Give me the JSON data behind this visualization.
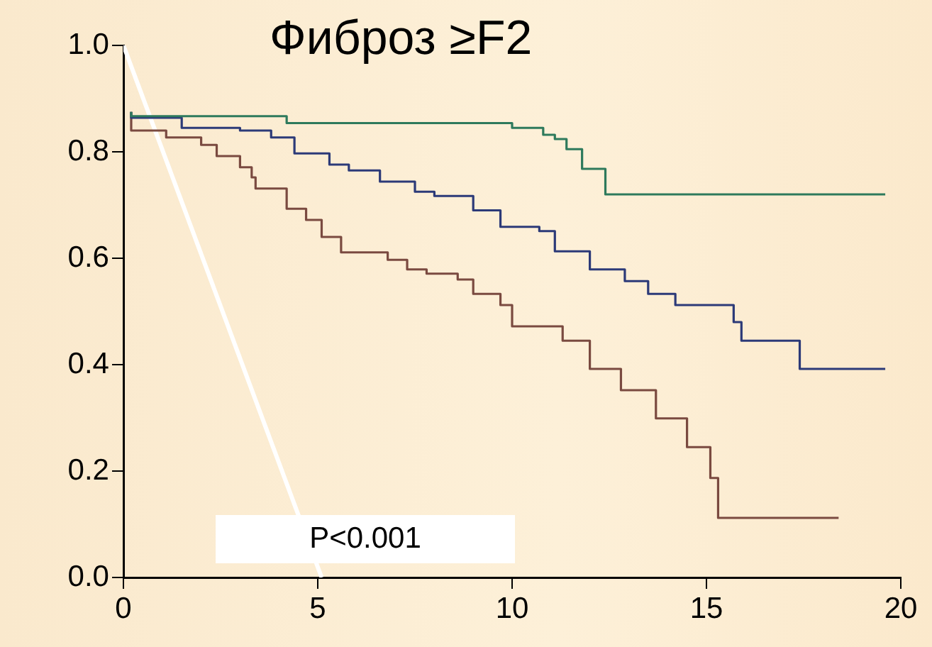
{
  "chart_data": {
    "type": "step",
    "title": "Фиброз ≥F2",
    "annotations": [
      "P<0.001"
    ],
    "xlim": [
      0,
      20
    ],
    "xticks": [
      0,
      5,
      10,
      15,
      20
    ],
    "ylim": [
      0,
      1
    ],
    "yticks": [
      {
        "value": 0,
        "label": "0.0"
      },
      0.2,
      0.4,
      0.6,
      0.8,
      {
        "value": 1,
        "label": "1.0"
      }
    ],
    "grid": false,
    "legend": false,
    "marker": "none",
    "line_style": "solid",
    "series": [
      {
        "color": "#2e7a5c",
        "x": [
          0.2,
          4.2,
          10.0,
          10.8,
          11.1,
          11.4,
          11.8,
          12.4,
          13.8,
          19.6
        ],
        "values": [
          0.875,
          0.867,
          0.854,
          0.845,
          0.832,
          0.824,
          0.805,
          0.768,
          0.72,
          0.72
        ]
      },
      {
        "color": "#2c3a78",
        "x": [
          0.2,
          1.5,
          3.0,
          3.8,
          4.4,
          5.3,
          5.8,
          6.6,
          7.5,
          8.0,
          9.0,
          9.7,
          10.7,
          11.1,
          12.0,
          12.9,
          13.5,
          14.2,
          15.7,
          15.9,
          17.4,
          17.6,
          19.6
        ],
        "values": [
          0.875,
          0.864,
          0.845,
          0.84,
          0.827,
          0.797,
          0.776,
          0.765,
          0.744,
          0.725,
          0.717,
          0.69,
          0.659,
          0.651,
          0.613,
          0.579,
          0.557,
          0.533,
          0.512,
          0.48,
          0.445,
          0.392,
          0.392
        ]
      },
      {
        "color": "#7a4a40",
        "x": [
          0.2,
          1.1,
          2.0,
          2.4,
          3.0,
          3.3,
          3.4,
          4.2,
          4.7,
          5.1,
          5.6,
          6.8,
          7.3,
          7.8,
          8.6,
          9.0,
          9.7,
          10.0,
          11.3,
          12.0,
          12.8,
          13.7,
          14.5,
          15.1,
          15.3,
          16.2,
          18.4
        ],
        "values": [
          0.875,
          0.84,
          0.827,
          0.813,
          0.792,
          0.771,
          0.752,
          0.731,
          0.693,
          0.672,
          0.64,
          0.611,
          0.597,
          0.579,
          0.571,
          0.56,
          0.533,
          0.512,
          0.472,
          0.445,
          0.392,
          0.352,
          0.299,
          0.245,
          0.187,
          0.112,
          0.112
        ]
      },
      {
        "type": "line",
        "color": "#ffffff",
        "x": [
          0,
          5.1
        ],
        "values": [
          1,
          0
        ]
      }
    ]
  }
}
